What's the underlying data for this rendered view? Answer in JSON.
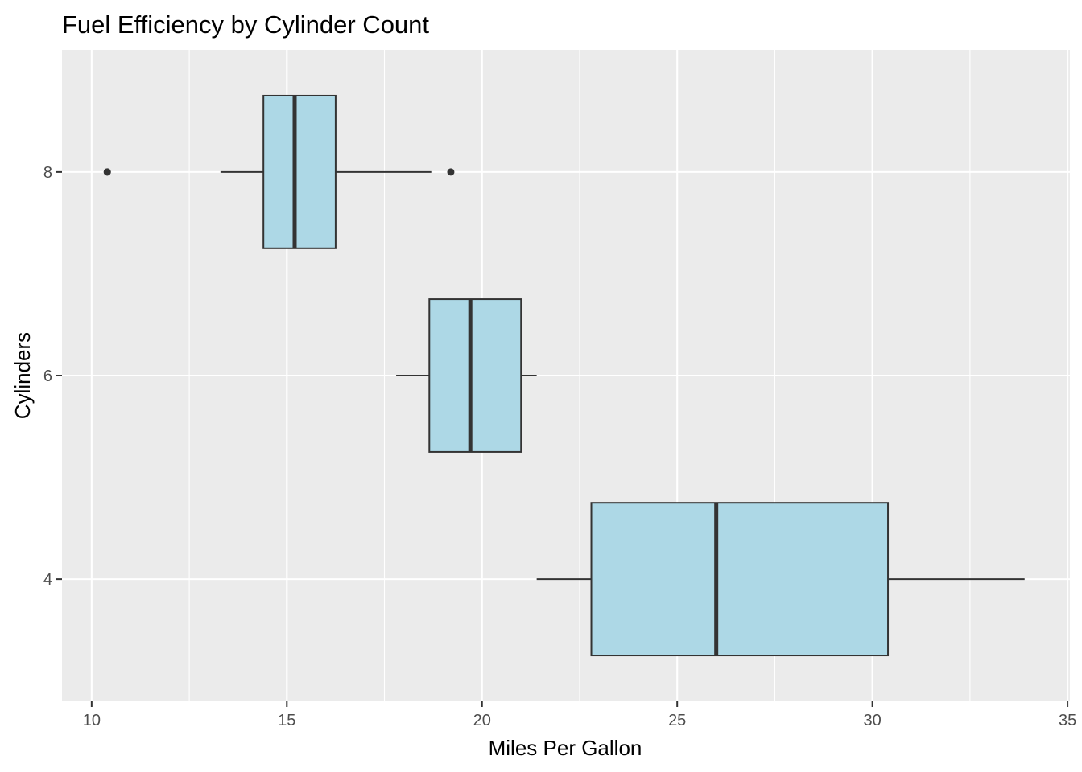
{
  "chart_data": {
    "type": "boxplot",
    "orientation": "horizontal",
    "title": "Fuel Efficiency by Cylinder Count",
    "xlabel": "Miles Per Gallon",
    "ylabel": "Cylinders",
    "xlim": [
      9.24,
      35.06
    ],
    "x_ticks": [
      10,
      15,
      20,
      25,
      30,
      35
    ],
    "y_ticks": [
      4,
      6,
      8
    ],
    "grid": true,
    "legend": "none",
    "colors": {
      "panel": "#ebebeb",
      "grid": "#ffffff",
      "box_fill": "#add8e6",
      "box_line": "#333333"
    },
    "groups": [
      {
        "category": "4",
        "min": 21.4,
        "q1": 22.8,
        "median": 26.0,
        "q3": 30.4,
        "max": 33.9,
        "outliers": []
      },
      {
        "category": "6",
        "min": 17.8,
        "q1": 18.65,
        "median": 19.7,
        "q3": 21.0,
        "max": 21.4,
        "outliers": []
      },
      {
        "category": "8",
        "min": 13.3,
        "q1": 14.4,
        "median": 15.2,
        "q3": 16.25,
        "max": 18.7,
        "outliers": [
          10.4,
          10.4,
          19.2
        ]
      }
    ]
  }
}
